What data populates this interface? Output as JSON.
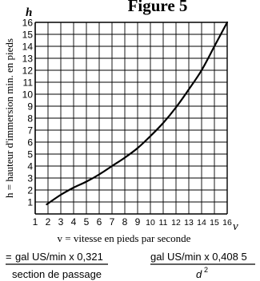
{
  "chart_data": {
    "type": "line",
    "title": "Figure 5",
    "xlabel": "v = vitesse en pieds par seconde",
    "ylabel": "h = hauteur d'immersion min. en pieds",
    "x_axis_symbol": "v",
    "y_axis_symbol": "h",
    "xlim": [
      1,
      16
    ],
    "ylim": [
      0,
      16
    ],
    "x_ticks": [
      "1",
      "2",
      "3",
      "4",
      "5",
      "6",
      "7",
      "8",
      "9",
      "10",
      "11",
      "12",
      "13",
      "14",
      "15",
      "16"
    ],
    "y_ticks": [
      "1",
      "2",
      "3",
      "4",
      "5",
      "6",
      "7",
      "8",
      "9",
      "10",
      "11",
      "12",
      "13",
      "14",
      "15",
      "16"
    ],
    "grid": true,
    "series": [
      {
        "x": [
          1.9,
          3,
          4,
          5,
          6,
          7,
          8,
          9,
          10,
          11,
          12,
          13,
          14,
          15,
          16
        ],
        "y": [
          0.8,
          1.6,
          2.2,
          2.7,
          3.3,
          4.0,
          4.7,
          5.5,
          6.5,
          7.6,
          8.9,
          10.4,
          12.0,
          14.0,
          16.0
        ]
      }
    ]
  },
  "formulas": {
    "prefix": "=",
    "left_numerator": "gal US/min x 0,321",
    "left_denominator": "section de passage",
    "right_numerator": "gal US/min x 0,408 5",
    "right_denominator_base": "d",
    "right_denominator_exp": "2"
  }
}
